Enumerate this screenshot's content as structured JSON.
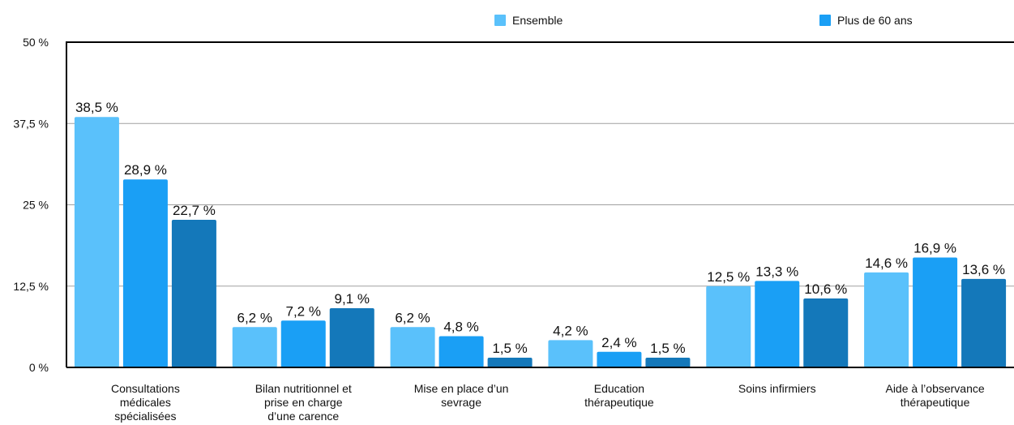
{
  "chart_data": {
    "type": "bar",
    "categories": [
      [
        "Consultations",
        "médicales",
        "spécialisées"
      ],
      [
        "Bilan nutritionnel et",
        "prise en charge",
        "d’une carence"
      ],
      [
        "Mise en place d’un",
        "sevrage"
      ],
      [
        "Education",
        "thérapeutique"
      ],
      [
        "Soins infirmiers"
      ],
      [
        "Aide à l’observance",
        "thérapeutique"
      ]
    ],
    "series": [
      {
        "name": "Ensemble",
        "color": "#5ac1fb",
        "values": [
          38.5,
          6.2,
          6.2,
          4.2,
          12.5,
          14.6
        ],
        "labels": [
          "38,5 %",
          "6,2 %",
          "6,2 %",
          "4,2 %",
          "12,5 %",
          "14,6 %"
        ]
      },
      {
        "name": "Plus de 60 ans",
        "color": "#1a9ff5",
        "values": [
          28.9,
          7.2,
          4.8,
          2.4,
          13.3,
          16.9
        ],
        "labels": [
          "28,9 %",
          "7,2 %",
          "4,8 %",
          "2,4 %",
          "13,3 %",
          "16,9 %"
        ]
      },
      {
        "name": "",
        "color": "#1478ba",
        "values": [
          22.7,
          9.1,
          1.5,
          1.5,
          10.6,
          13.6
        ],
        "labels": [
          "22,7 %",
          "9,1 %",
          "1,5 %",
          "1,5 %",
          "10,6 %",
          "13,6 %"
        ]
      }
    ],
    "yticks": [
      0,
      12.5,
      25,
      37.5,
      50
    ],
    "ytick_labels": [
      "0 %",
      "12,5 %",
      "25 %",
      "37,5 %",
      "50 %"
    ],
    "ylim": [
      0,
      50
    ],
    "grid": true,
    "legend": {
      "position": "top",
      "entries": [
        "Ensemble",
        "Plus de 60 ans"
      ]
    }
  }
}
